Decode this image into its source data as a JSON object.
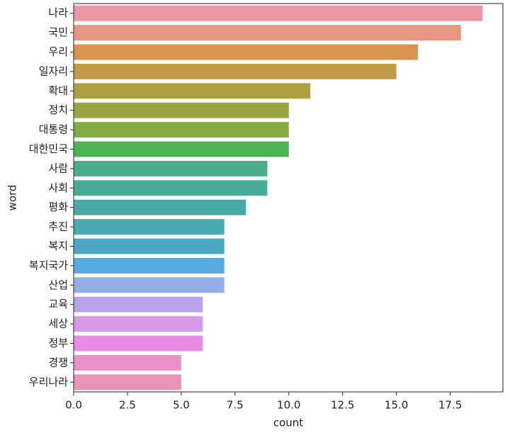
{
  "chart_data": {
    "type": "barh",
    "x_label": "count",
    "y_label": "word",
    "categories": [
      "나라",
      "국민",
      "우리",
      "일자리",
      "확대",
      "정치",
      "대통령",
      "대한민국",
      "사람",
      "사회",
      "평화",
      "추진",
      "복지",
      "복지국가",
      "산업",
      "교육",
      "세상",
      "정부",
      "경쟁",
      "우리나라"
    ],
    "values": [
      19,
      18,
      16,
      15,
      11,
      10,
      10,
      10,
      9,
      9,
      8,
      7,
      7,
      7,
      7,
      6,
      6,
      6,
      5,
      5
    ],
    "colors": [
      "#ea96a3",
      "#e8967f",
      "#d8954c",
      "#c29b48",
      "#aea03f",
      "#9aa542",
      "#84ab46",
      "#4cb350",
      "#4aae8b",
      "#49ab9c",
      "#48aaa4",
      "#4aa9b1",
      "#4ba8c0",
      "#55aadf",
      "#93afe8",
      "#b8a4ea",
      "#d49ae8",
      "#e98be5",
      "#e990c4",
      "#e993b6"
    ],
    "xlim": [
      0,
      19.95
    ],
    "xticks": [
      {
        "value": 0,
        "label": "0.0"
      },
      2.5,
      {
        "value": 5,
        "label": "5.0"
      },
      7.5,
      {
        "value": 10,
        "label": "10.0"
      },
      12.5,
      {
        "value": 15,
        "label": "15.0"
      },
      17.5
    ],
    "grid": false
  }
}
